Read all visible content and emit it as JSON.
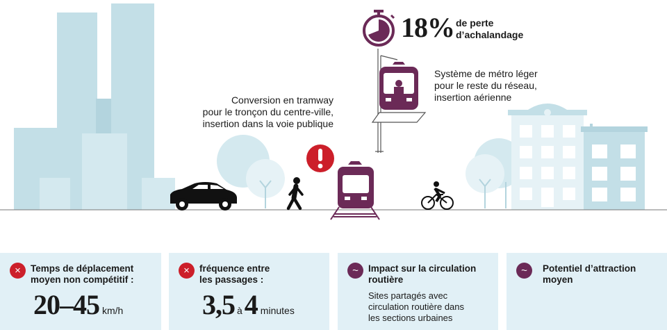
{
  "stat": {
    "value": "18%",
    "text_line1": "de perte",
    "text_line2": "d’achalandage"
  },
  "labels": {
    "tram": [
      "Conversion en tramway",
      "pour le tronçon du centre-ville,",
      "insertion dans la voie publique"
    ],
    "metro": [
      "Système de métro léger",
      "pour le reste du réseau,",
      "insertion aérienne"
    ]
  },
  "icons": {
    "stopwatch": "stopwatch-icon",
    "warning": "exclamation-icon",
    "car": "car-icon",
    "pedestrian": "pedestrian-icon",
    "cyclist": "cyclist-icon",
    "tram": "tram-icon",
    "metro": "metro-icon"
  },
  "colors": {
    "plum": "#6b2a57",
    "red": "#cc1f2a",
    "sky": "#c3dfe7",
    "card": "#e1f0f6"
  },
  "cards": [
    {
      "icon": "×",
      "status": "negative",
      "title": [
        "Temps de déplacement",
        "moyen non compétitif :"
      ],
      "from": "20",
      "dash": "–",
      "to": "45",
      "unit": "km/h"
    },
    {
      "icon": "×",
      "status": "negative",
      "title": [
        "fréquence entre",
        "les passages :"
      ],
      "from": "3,5",
      "sep": "à",
      "to": "4",
      "unit": "minutes"
    },
    {
      "icon": "~",
      "status": "neutral",
      "title": [
        "Impact sur la circulation",
        "routière"
      ],
      "body": [
        "Sites partagés avec",
        "circulation routière dans",
        "les sections urbaines"
      ]
    },
    {
      "icon": "~",
      "status": "neutral",
      "title": [
        "Potentiel d’attraction",
        "moyen"
      ]
    }
  ]
}
